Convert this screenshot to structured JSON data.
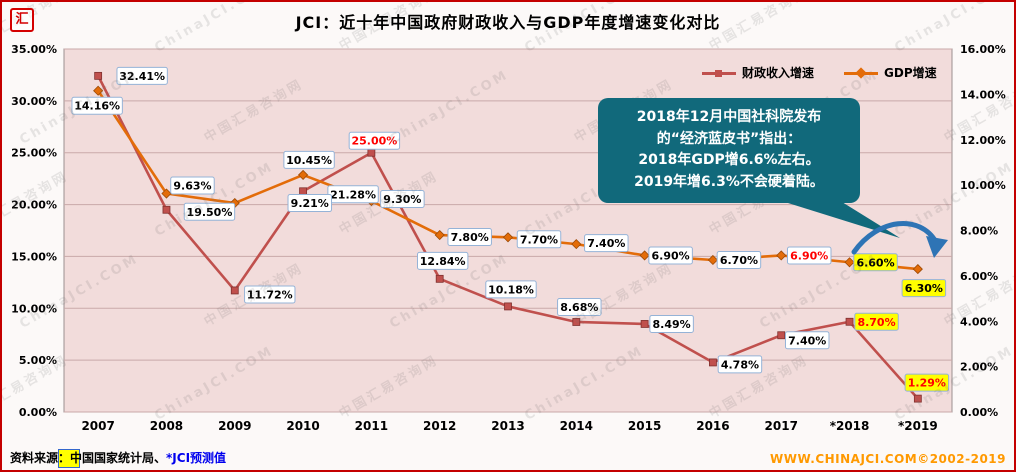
{
  "page": {
    "logo_text": "汇",
    "title": "JCI：近十年中国政府财政收入与GDP年度增速变化对比",
    "watermarks": [
      "中国汇易咨询网",
      "ChinaJCI.COM"
    ],
    "callout": {
      "lines": [
        "2018年12月中国社科院发布",
        "的“经济蓝皮书”指出：",
        "2018年GDP增6.6%左右。",
        "2019年增6.3%不会硬着陆。"
      ],
      "bg_color": "#11697B",
      "arrow_color": "#2E74B5"
    },
    "footer": {
      "source_label": "资料来源：",
      "source_body": "中国国家统计局、",
      "forecast_link": "*JCI预测值",
      "website": "WWW.CHINAJCI.COM©2002-2019"
    }
  },
  "chart_data": {
    "type": "line",
    "title": "JCI：近十年中国政府财政收入与GDP年度增速变化对比",
    "categories": [
      "2007",
      "2008",
      "2009",
      "2010",
      "2011",
      "2012",
      "2013",
      "2014",
      "2015",
      "2016",
      "2017",
      "*2018",
      "*2019"
    ],
    "series": [
      {
        "name": "财政收入增速",
        "axis": "left",
        "color": "#C0504D",
        "marker": "square",
        "values": [
          32.41,
          19.5,
          11.72,
          21.28,
          25.0,
          12.84,
          10.18,
          8.68,
          8.49,
          4.78,
          7.4,
          8.7,
          1.29
        ],
        "red_label_indices": [
          4,
          11,
          12
        ],
        "yellow_label_indices": [
          11,
          12
        ]
      },
      {
        "name": "GDP增速",
        "axis": "right",
        "color": "#E36C09",
        "marker": "diamond",
        "values": [
          14.16,
          9.63,
          9.21,
          10.45,
          9.3,
          7.8,
          7.7,
          7.4,
          6.9,
          6.7,
          6.9,
          6.6,
          6.3
        ],
        "red_label_indices": [
          10
        ],
        "yellow_label_indices": [
          11,
          12
        ]
      }
    ],
    "left_axis": {
      "min": 0,
      "max": 35,
      "step": 5,
      "suffix": "%"
    },
    "right_axis": {
      "min": 0,
      "max": 16,
      "step": 2,
      "suffix": "%"
    },
    "legend_position": "top-right",
    "grid": true,
    "plot_bg": "#F2DCDB",
    "label_border": "#95B3D7",
    "label_highlight": "#FFFF00",
    "label_emphasis": "#FF0000"
  }
}
